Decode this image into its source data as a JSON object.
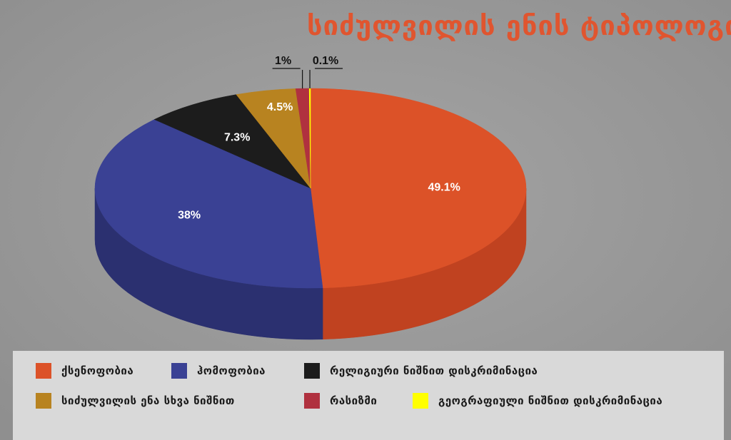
{
  "title": "სიძულვილის ენის ტიპოლოგია",
  "colors": {
    "background": "#9a9a9a",
    "title": "#e0552f",
    "legend_bg": "#d9d9d9"
  },
  "chart_data": {
    "type": "pie",
    "style": "3d",
    "legend_placement": "bottom",
    "slices": [
      {
        "label": "ქსენოფობია",
        "value": 49.1,
        "display": "49.1%",
        "color": "#dc5228",
        "side": "#c04220",
        "label_color": "#ffffff",
        "label_outside": false
      },
      {
        "label": "ჰომოფობია",
        "value": 38,
        "display": "38%",
        "color": "#3a4194",
        "side": "#2b3070",
        "label_color": "#ffffff",
        "label_outside": false
      },
      {
        "label": "რელიგიური ნიშნით დისკრიმინაცია",
        "value": 7.3,
        "display": "7.3%",
        "color": "#1c1c1c",
        "side": "#111111",
        "label_color": "#ffffff",
        "label_outside": false
      },
      {
        "label": "სიძულვილის ენა სხვა ნიშნით",
        "value": 4.5,
        "display": "4.5%",
        "color": "#b88320",
        "side": "#8e6418",
        "label_color": "#ffffff",
        "label_outside": false
      },
      {
        "label": "რასიზმი",
        "value": 1,
        "display": "1%",
        "color": "#b0313f",
        "side": "#8a2430",
        "label_color": "#111111",
        "label_outside": true
      },
      {
        "label": "გეოგრაფიული ნიშნით დისკრიმინაცია",
        "value": 0.1,
        "display": "0.1%",
        "color": "#ffff00",
        "side": "#cccc00",
        "label_color": "#111111",
        "label_outside": true
      }
    ]
  }
}
